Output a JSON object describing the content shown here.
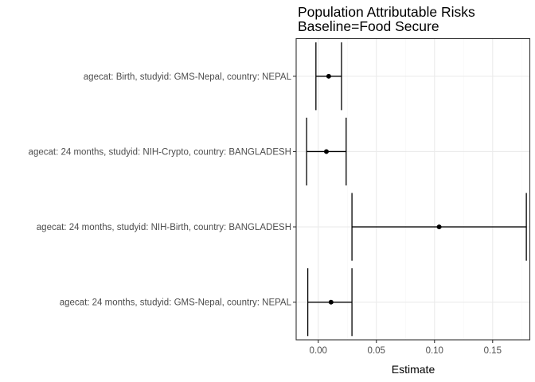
{
  "chart_data": {
    "type": "errorbar",
    "title": "Population Attributable Risks",
    "subtitle": "Baseline=Food Secure",
    "xlabel": "Estimate",
    "ylabel": "",
    "xlim": [
      -0.019,
      0.182
    ],
    "xticks": [
      0.0,
      0.05,
      0.1,
      0.15
    ],
    "xtick_labels": [
      "0.00",
      "0.05",
      "0.10",
      "0.15"
    ],
    "grid": true,
    "categories": [
      "agecat: Birth, studyid: GMS-Nepal, country: NEPAL",
      "agecat: 24 months, studyid: NIH-Crypto, country: BANGLADESH",
      "agecat: 24 months, studyid: NIH-Birth, country: BANGLADESH",
      "agecat: 24 months, studyid: GMS-Nepal, country: NEPAL"
    ],
    "estimates": [
      0.009,
      0.007,
      0.104,
      0.011
    ],
    "lower": [
      -0.002,
      -0.01,
      0.029,
      -0.009
    ],
    "upper": [
      0.02,
      0.024,
      0.179,
      0.029
    ]
  },
  "colors": {
    "panel_border": "#333333",
    "grid_major": "#ebebeb",
    "grid_minor": "#f5f5f5",
    "mark": "#000000",
    "axis_text": "#4d4d4d"
  }
}
